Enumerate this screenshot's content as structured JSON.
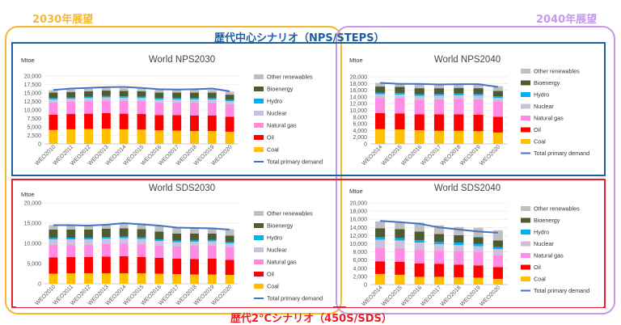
{
  "labels": {
    "outlook_2030": "2030年展望",
    "outlook_2040": "2040年展望",
    "central_scenario": "歴代中心シナリオ（NPS/STEPS）",
    "two_degree_scenario": "歴代2°Cシナリオ（450S/SDS）"
  },
  "colors": {
    "orange_frame": "#F6B733",
    "purple_frame": "#C39BE8",
    "blue_frame": "#1F5FA0",
    "red_frame": "#E8202A",
    "central_text": "#1F5FA0",
    "two_degree_text": "#E8202A",
    "outlook_2030_text": "#F6B733",
    "outlook_2040_text": "#C39BE8"
  },
  "legend": [
    {
      "name": "Other renewables",
      "color": "#BFBFBF"
    },
    {
      "name": "Bioenergy",
      "color": "#4E5B31"
    },
    {
      "name": "Hydro",
      "color": "#00B0F0"
    },
    {
      "name": "Nuclear",
      "color": "#CCC0DA"
    },
    {
      "name": "Natural gas",
      "color": "#FF8BE5"
    },
    {
      "name": "Oil",
      "color": "#FF0000"
    },
    {
      "name": "Coal",
      "color": "#FFC000"
    },
    {
      "name": "Total primary demand",
      "color": "#4472C4"
    }
  ],
  "chart_data": [
    {
      "type": "bar",
      "title": "World NPS2030",
      "ylabel": "Mtoe",
      "ylim": [
        0,
        20000
      ],
      "yticks": [
        "0",
        "2,500",
        "5,000",
        "7,500",
        "10,000",
        "12,500",
        "15,000",
        "17,500",
        "20,000"
      ],
      "categories": [
        "WEO2010",
        "WEO2011",
        "WEO2012",
        "WEO2013",
        "WEO2014",
        "WEO2015",
        "WEO2016",
        "WEO2017",
        "WEO2018",
        "WEO2019",
        "WEO2020"
      ],
      "series": [
        {
          "name": "Coal",
          "values": [
            4100,
            4300,
            4400,
            4500,
            4300,
            4200,
            4000,
            3900,
            3800,
            3800,
            3600
          ]
        },
        {
          "name": "Oil",
          "values": [
            4500,
            4500,
            4500,
            4600,
            4600,
            4600,
            4500,
            4600,
            4600,
            4600,
            4400
          ]
        },
        {
          "name": "Natural gas",
          "values": [
            3600,
            3600,
            3700,
            3700,
            3800,
            3800,
            3700,
            3700,
            3800,
            3800,
            3700
          ]
        },
        {
          "name": "Nuclear",
          "values": [
            900,
            900,
            900,
            900,
            900,
            900,
            900,
            900,
            900,
            900,
            900
          ]
        },
        {
          "name": "Hydro",
          "values": [
            400,
            400,
            400,
            400,
            400,
            400,
            400,
            400,
            400,
            400,
            400
          ]
        },
        {
          "name": "Bioenergy",
          "values": [
            1600,
            1600,
            1600,
            1600,
            1600,
            1600,
            1600,
            1600,
            1600,
            1600,
            1500
          ]
        },
        {
          "name": "Other renewables",
          "values": [
            700,
            750,
            750,
            700,
            800,
            750,
            800,
            700,
            800,
            800,
            900
          ]
        }
      ],
      "total_primary_demand": [
        15900,
        16300,
        16500,
        16700,
        16800,
        16500,
        16100,
        16000,
        16100,
        16300,
        15500
      ],
      "ymax_tick": "20,000"
    },
    {
      "type": "bar",
      "title": "World NPS2040",
      "ylabel": "Mtoe",
      "ylim": [
        0,
        20000
      ],
      "yticks": [
        "0",
        "2,000",
        "4,000",
        "6,000",
        "8,000",
        "10,000",
        "12,000",
        "14,000",
        "16,000",
        "18,000",
        "20,000"
      ],
      "categories": [
        "WEO2014",
        "WEO2015",
        "WEO2016",
        "WEO2017",
        "WEO2018",
        "WEO2019",
        "WEO2020"
      ],
      "series": [
        {
          "name": "Coal",
          "values": [
            4400,
            4300,
            4100,
            3900,
            3900,
            3800,
            3400
          ]
        },
        {
          "name": "Oil",
          "values": [
            4800,
            4800,
            4700,
            4900,
            4900,
            4900,
            4700
          ]
        },
        {
          "name": "Natural gas",
          "values": [
            4500,
            4500,
            4400,
            4500,
            4600,
            4600,
            4500
          ]
        },
        {
          "name": "Nuclear",
          "values": [
            1100,
            1100,
            1100,
            1100,
            1100,
            1100,
            1100
          ]
        },
        {
          "name": "Hydro",
          "values": [
            500,
            500,
            500,
            500,
            500,
            500,
            500
          ]
        },
        {
          "name": "Bioenergy",
          "values": [
            1800,
            1800,
            1800,
            1700,
            1700,
            1700,
            1600
          ]
        },
        {
          "name": "Other renewables",
          "values": [
            1100,
            1100,
            1200,
            1200,
            1200,
            1300,
            1400
          ]
        }
      ],
      "total_primary_demand": [
        18200,
        17900,
        17900,
        17700,
        17800,
        17800,
        17000
      ]
    },
    {
      "type": "bar",
      "title": "World SDS2030",
      "ylabel": "Mtoe",
      "ylim": [
        0,
        20000
      ],
      "yticks": [
        "0",
        "5,000",
        "10,000",
        "15,000",
        "20,000"
      ],
      "categories": [
        "WEO2010",
        "WEO2011",
        "WEO2012",
        "WEO2013",
        "WEO2014",
        "WEO2015",
        "WEO2016",
        "WEO2017",
        "WEO2018",
        "WEO2019",
        "WEO2020"
      ],
      "series": [
        {
          "name": "Coal",
          "values": [
            2500,
            2600,
            2600,
            2600,
            2600,
            2600,
            2500,
            2400,
            2300,
            2300,
            2200
          ]
        },
        {
          "name": "Oil",
          "values": [
            4000,
            4000,
            4000,
            4100,
            4200,
            4000,
            3900,
            3800,
            3800,
            3900,
            3700
          ]
        },
        {
          "name": "Natural gas",
          "values": [
            3100,
            3000,
            3000,
            3100,
            3100,
            3100,
            3000,
            3000,
            3200,
            3200,
            3100
          ]
        },
        {
          "name": "Nuclear",
          "values": [
            1400,
            1400,
            1400,
            1400,
            1400,
            1400,
            1200,
            1100,
            1100,
            1100,
            1000
          ]
        },
        {
          "name": "Hydro",
          "values": [
            400,
            400,
            400,
            400,
            400,
            400,
            400,
            400,
            400,
            400,
            400
          ]
        },
        {
          "name": "Bioenergy",
          "values": [
            2000,
            2000,
            2000,
            2000,
            2000,
            2000,
            1900,
            1700,
            1600,
            1500,
            1500
          ]
        },
        {
          "name": "Other renewables",
          "values": [
            1100,
            1200,
            1000,
            1200,
            1400,
            1400,
            1400,
            1600,
            1500,
            1500,
            1600
          ]
        }
      ],
      "total_primary_demand": [
        14500,
        14500,
        14400,
        14600,
        15000,
        14700,
        14400,
        13900,
        13800,
        13700,
        13400
      ]
    },
    {
      "type": "bar",
      "title": "World SDS2040",
      "ylabel": "Mtoe",
      "ylim": [
        0,
        20000
      ],
      "yticks": [
        "0",
        "2,000",
        "4,000",
        "6,000",
        "8,000",
        "10,000",
        "12,000",
        "14,000",
        "16,000",
        "18,000",
        "20,000"
      ],
      "categories": [
        "WEO2014",
        "WEO2015",
        "WEO2016",
        "WEO2017",
        "WEO2018",
        "WEO2019",
        "WEO2020"
      ],
      "series": [
        {
          "name": "Coal",
          "values": [
            2600,
            2400,
            1900,
            1900,
            1800,
            1700,
            1400
          ]
        },
        {
          "name": "Oil",
          "values": [
            3100,
            3200,
            3300,
            3200,
            3100,
            3000,
            2900
          ]
        },
        {
          "name": "Natural gas",
          "values": [
            3300,
            3300,
            3300,
            3200,
            3300,
            3300,
            3000
          ]
        },
        {
          "name": "Nuclear",
          "values": [
            2000,
            1900,
            1800,
            1600,
            1500,
            1400,
            1400
          ]
        },
        {
          "name": "Hydro",
          "values": [
            600,
            600,
            600,
            600,
            600,
            600,
            500
          ]
        },
        {
          "name": "Bioenergy",
          "values": [
            2200,
            2200,
            2100,
            1900,
            1800,
            1600,
            1600
          ]
        },
        {
          "name": "Other renewables",
          "values": [
            1700,
            1700,
            2200,
            2100,
            2000,
            2300,
            2500
          ]
        }
      ],
      "total_primary_demand": [
        15600,
        15300,
        14900,
        14000,
        13500,
        13000,
        12700
      ]
    }
  ]
}
